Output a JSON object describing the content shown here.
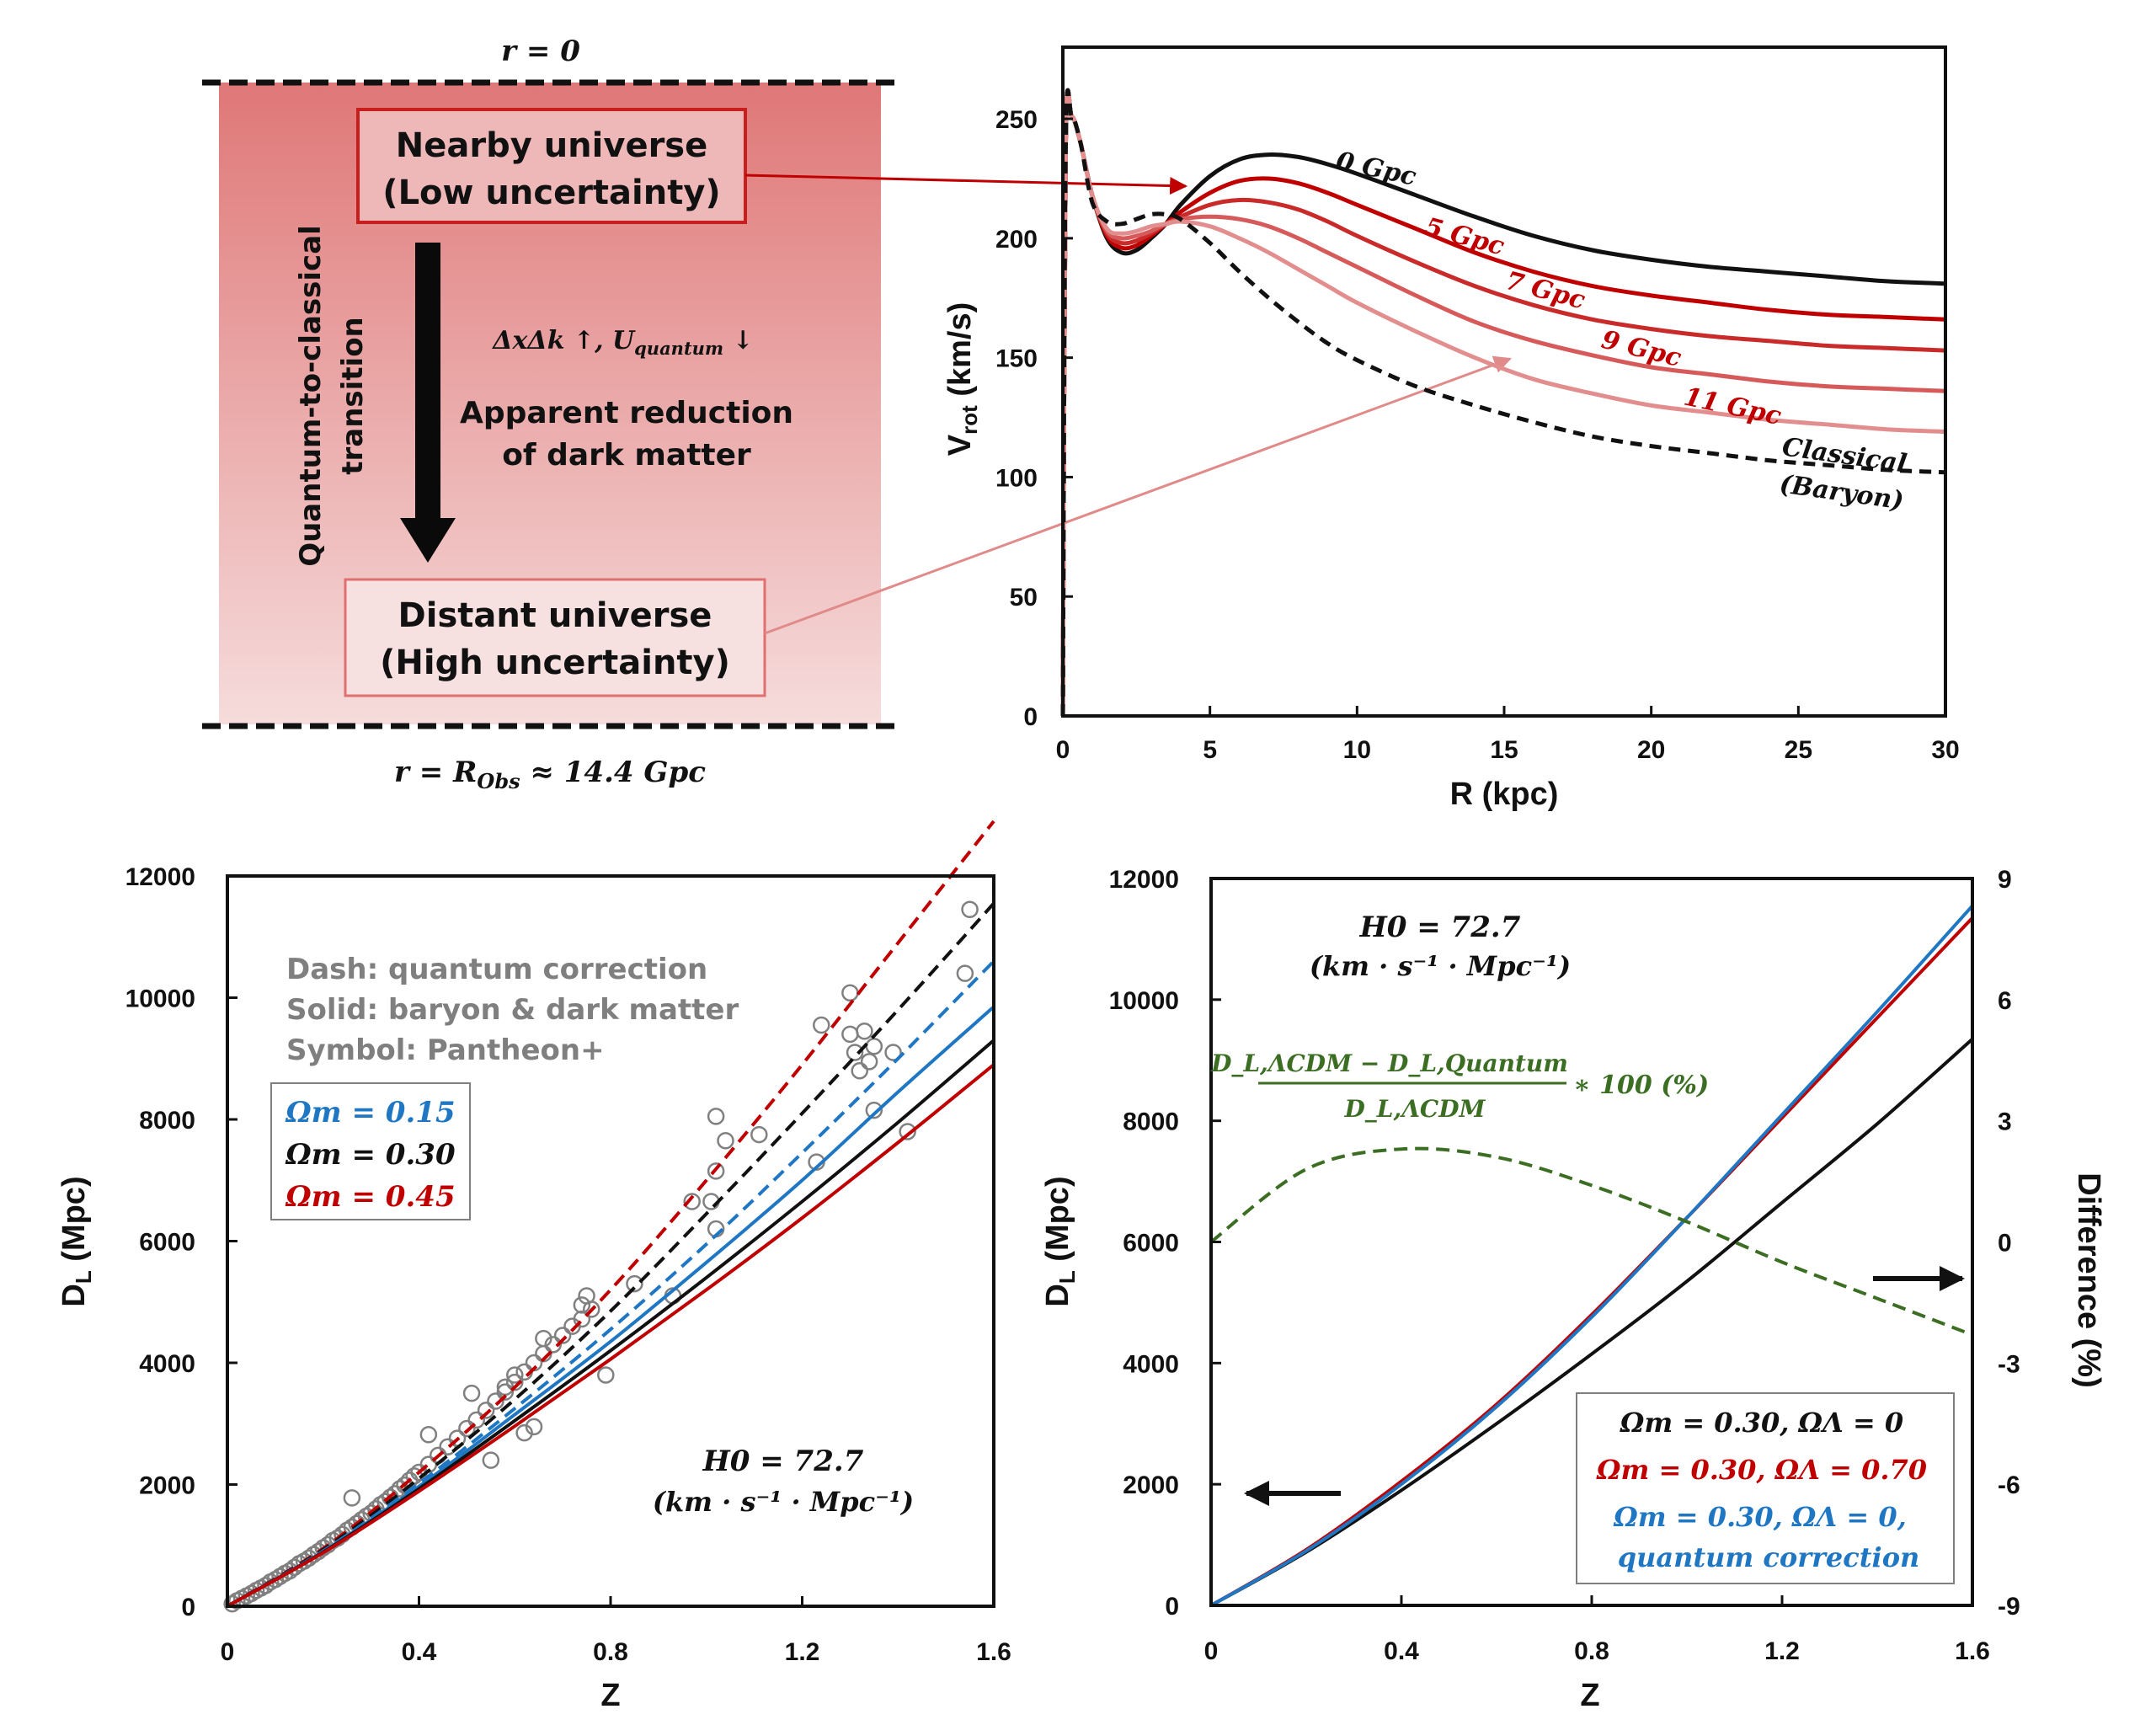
{
  "colors": {
    "black": "#111111",
    "red_dark": "#c00000",
    "red_mid": "#d04545",
    "blue": "#1f77c4",
    "green": "#3b6e22",
    "gray_marker": "#808080",
    "band_top": "#df7777",
    "band_bottom": "#f6dcdc"
  },
  "diagram": {
    "top_boundary_label": "r = 0",
    "bottom_boundary_label": "r = R_Obs ≈ 14.4 Gpc",
    "bottom_boundary_parts": {
      "r": "r",
      "eq": " = ",
      "R": "R",
      "sub": "Obs",
      "rest": " ≈ 14.4 Gpc"
    },
    "nearby_box": {
      "line1": "Nearby universe",
      "line2": "(Low uncertainty)"
    },
    "distant_box": {
      "line1": "Distant universe",
      "line2": "(High uncertainty)"
    },
    "vertical_label": {
      "line1": "Quantum-to-classical",
      "line2": "transition"
    },
    "uncertainty_text": {
      "pre": "ΔxΔk ↑, U",
      "sub": "quantum",
      "post": " ↓"
    },
    "reduction_text": {
      "line1": "Apparent reduction",
      "line2": "of dark matter"
    }
  },
  "chart_data": [
    {
      "id": "rotation_curves",
      "type": "line",
      "title": "",
      "xlabel": "R (kpc)",
      "ylabel": "V_rot (km/s)",
      "ylabel_parts": {
        "main": "V",
        "sub": "rot",
        "rest": " (km/s)"
      },
      "xlim": [
        0,
        30
      ],
      "ylim": [
        0,
        280
      ],
      "xticks": [
        0,
        5,
        10,
        15,
        20,
        25,
        30
      ],
      "yticks": [
        0,
        50,
        100,
        150,
        200,
        250
      ],
      "grid": false,
      "legend": "inline-labels",
      "x": [
        0,
        0.1,
        0.3,
        0.6,
        1,
        1.5,
        2,
        2.5,
        3,
        3.5,
        4,
        5,
        6,
        7,
        8,
        9,
        10,
        12,
        14,
        16,
        18,
        20,
        22,
        24,
        26,
        28,
        30
      ],
      "series": [
        {
          "name": "0 Gpc",
          "label": "0 Gpc",
          "style": "solid",
          "color": "#111111",
          "values": [
            0,
            240,
            251,
            240,
            218,
            200,
            194,
            195,
            200,
            206,
            214,
            226,
            233,
            235,
            234,
            231,
            227,
            218,
            209,
            201,
            195,
            191,
            188,
            186,
            184,
            182,
            181
          ]
        },
        {
          "name": "5 Gpc",
          "label": "5 Gpc",
          "style": "solid",
          "color": "#c00000",
          "values": [
            0,
            240,
            251,
            240,
            218,
            201,
            196,
            197,
            201,
            206,
            211,
            219,
            224,
            225,
            223,
            219,
            214,
            204,
            194,
            186,
            180,
            176,
            173,
            170,
            168,
            167,
            166
          ]
        },
        {
          "name": "7 Gpc",
          "label": "7 Gpc",
          "style": "solid",
          "color": "#c92a2a",
          "values": [
            0,
            240,
            251,
            240,
            218,
            202,
            198,
            199,
            202,
            206,
            209,
            214,
            216,
            215,
            212,
            207,
            201,
            190,
            180,
            172,
            166,
            162,
            159,
            157,
            155,
            154,
            153
          ]
        },
        {
          "name": "9 Gpc",
          "label": "9 Gpc",
          "style": "solid",
          "color": "#d65a5a",
          "values": [
            0,
            240,
            251,
            240,
            218,
            203,
            200,
            201,
            203,
            206,
            208,
            209,
            208,
            205,
            200,
            194,
            188,
            176,
            165,
            157,
            151,
            146,
            143,
            140,
            138,
            137,
            136
          ]
        },
        {
          "name": "11 Gpc",
          "label": "11 Gpc",
          "style": "solid",
          "color": "#e38e8e",
          "values": [
            0,
            240,
            251,
            240,
            218,
            204,
            202,
            203,
            205,
            206,
            207,
            205,
            200,
            194,
            187,
            180,
            173,
            161,
            150,
            141,
            135,
            130,
            127,
            124,
            122,
            120,
            119
          ]
        },
        {
          "name": "Classical (Baryon)",
          "label": "Classical (Baryon)",
          "style": "dashed",
          "color": "#111111",
          "values": [
            0,
            240,
            251,
            240,
            215,
            207,
            206,
            208,
            210,
            210,
            208,
            198,
            186,
            175,
            165,
            156,
            149,
            138,
            130,
            123,
            117,
            113,
            110,
            107,
            105,
            103,
            102
          ]
        }
      ],
      "annotations": [
        "0 Gpc",
        "5 Gpc",
        "7 Gpc",
        "9 Gpc",
        "11 Gpc",
        "Classical",
        "(Baryon)"
      ]
    },
    {
      "id": "luminosity_distance_omega_m",
      "type": "line",
      "title": "",
      "xlabel": "Z",
      "ylabel": "D_L (Mpc)",
      "ylabel_parts": {
        "main": "D",
        "sub": "L",
        "rest": " (Mpc)"
      },
      "xlim": [
        0,
        1.6
      ],
      "ylim": [
        0,
        12000
      ],
      "xticks": [
        0,
        0.4,
        0.8,
        1.2,
        1.6
      ],
      "xtick_labels": [
        "0",
        "0.4",
        "0.8",
        "1.2",
        "1.6"
      ],
      "yticks": [
        0,
        2000,
        4000,
        6000,
        8000,
        10000,
        12000
      ],
      "grid": false,
      "legend": "top-left",
      "notes": [
        "Dash: quantum correction",
        "Solid: baryon & dark matter",
        "Symbol: Pantheon+"
      ],
      "legend_entries": [
        {
          "label": "Ωm = 0.15",
          "color": "#1f77c4"
        },
        {
          "label": "Ωm = 0.30",
          "color": "#111111"
        },
        {
          "label": "Ωm = 0.45",
          "color": "#c00000"
        }
      ],
      "h0_annotation": {
        "line1": "H0 = 72.7",
        "line2": "(km · s⁻¹ · Mpc⁻¹)"
      },
      "x": [
        0,
        0.2,
        0.4,
        0.6,
        0.8,
        1.0,
        1.2,
        1.4,
        1.6
      ],
      "series": [
        {
          "name": "Ωm = 0.45 dashed",
          "style": "dashed",
          "color": "#c00000",
          "values": [
            0,
            950,
            2200,
            3600,
            5200,
            7000,
            8900,
            10900,
            12900
          ]
        },
        {
          "name": "Ωm = 0.30 dashed",
          "style": "dashed",
          "color": "#111111",
          "values": [
            0,
            930,
            2100,
            3400,
            4850,
            6450,
            8100,
            9800,
            11550
          ]
        },
        {
          "name": "Ωm = 0.15 dashed",
          "style": "dashed",
          "color": "#1f77c4",
          "values": [
            0,
            910,
            2020,
            3250,
            4550,
            5950,
            7450,
            9000,
            10600
          ]
        },
        {
          "name": "Ωm = 0.15 solid",
          "style": "solid",
          "color": "#1f77c4",
          "values": [
            0,
            900,
            1970,
            3150,
            4350,
            5650,
            7000,
            8450,
            9850
          ]
        },
        {
          "name": "Ωm = 0.30 solid",
          "style": "solid",
          "color": "#111111",
          "values": [
            0,
            890,
            1930,
            3050,
            4200,
            5400,
            6650,
            7950,
            9300
          ]
        },
        {
          "name": "Ωm = 0.45 solid",
          "style": "solid",
          "color": "#c00000",
          "values": [
            0,
            880,
            1890,
            2960,
            4060,
            5200,
            6380,
            7620,
            8900
          ]
        }
      ],
      "scatter": {
        "name": "Pantheon+",
        "color": "#808080",
        "points": [
          [
            0.01,
            40
          ],
          [
            0.02,
            90
          ],
          [
            0.03,
            130
          ],
          [
            0.04,
            170
          ],
          [
            0.05,
            210
          ],
          [
            0.06,
            260
          ],
          [
            0.07,
            300
          ],
          [
            0.08,
            340
          ],
          [
            0.09,
            400
          ],
          [
            0.1,
            440
          ],
          [
            0.11,
            490
          ],
          [
            0.12,
            540
          ],
          [
            0.13,
            580
          ],
          [
            0.14,
            640
          ],
          [
            0.15,
            700
          ],
          [
            0.16,
            740
          ],
          [
            0.17,
            790
          ],
          [
            0.18,
            850
          ],
          [
            0.19,
            900
          ],
          [
            0.2,
            960
          ],
          [
            0.21,
            1010
          ],
          [
            0.22,
            1080
          ],
          [
            0.23,
            1120
          ],
          [
            0.24,
            1180
          ],
          [
            0.25,
            1250
          ],
          [
            0.26,
            1300
          ],
          [
            0.27,
            1360
          ],
          [
            0.28,
            1420
          ],
          [
            0.29,
            1480
          ],
          [
            0.3,
            1530
          ],
          [
            0.31,
            1600
          ],
          [
            0.32,
            1670
          ],
          [
            0.33,
            1720
          ],
          [
            0.34,
            1790
          ],
          [
            0.35,
            1850
          ],
          [
            0.36,
            1930
          ],
          [
            0.37,
            1990
          ],
          [
            0.38,
            2070
          ],
          [
            0.39,
            2140
          ],
          [
            0.4,
            2200
          ],
          [
            0.42,
            2330
          ],
          [
            0.44,
            2480
          ],
          [
            0.46,
            2620
          ],
          [
            0.48,
            2760
          ],
          [
            0.5,
            2920
          ],
          [
            0.52,
            3060
          ],
          [
            0.54,
            3220
          ],
          [
            0.56,
            3370
          ],
          [
            0.58,
            3520
          ],
          [
            0.6,
            3680
          ],
          [
            0.62,
            3850
          ],
          [
            0.64,
            4000
          ],
          [
            0.66,
            4150
          ],
          [
            0.68,
            4300
          ],
          [
            0.7,
            4450
          ],
          [
            0.72,
            4600
          ],
          [
            0.74,
            4720
          ],
          [
            0.76,
            4880
          ],
          [
            0.26,
            1780
          ],
          [
            0.42,
            2820
          ],
          [
            0.51,
            3500
          ],
          [
            0.55,
            2400
          ],
          [
            0.62,
            2850
          ],
          [
            0.64,
            2950
          ],
          [
            0.58,
            3600
          ],
          [
            0.66,
            4400
          ],
          [
            0.6,
            3800
          ],
          [
            0.75,
            5100
          ],
          [
            0.74,
            4950
          ],
          [
            0.79,
            3800
          ],
          [
            0.85,
            5300
          ],
          [
            0.93,
            5100
          ],
          [
            0.97,
            6650
          ],
          [
            1.01,
            6650
          ],
          [
            1.02,
            6200
          ],
          [
            1.02,
            7150
          ],
          [
            1.02,
            8050
          ],
          [
            1.04,
            7650
          ],
          [
            1.11,
            7750
          ],
          [
            1.23,
            7300
          ],
          [
            1.24,
            9550
          ],
          [
            1.3,
            10080
          ],
          [
            1.3,
            9400
          ],
          [
            1.31,
            9100
          ],
          [
            1.32,
            8800
          ],
          [
            1.33,
            9450
          ],
          [
            1.34,
            8950
          ],
          [
            1.35,
            9200
          ],
          [
            1.35,
            8150
          ],
          [
            1.39,
            9100
          ],
          [
            1.42,
            7800
          ],
          [
            1.54,
            10400
          ],
          [
            1.55,
            11450
          ]
        ]
      }
    },
    {
      "id": "luminosity_distance_lambda",
      "type": "line",
      "title": "",
      "xlabel": "Z",
      "ylabel": "D_L (Mpc)",
      "ylabel_parts": {
        "main": "D",
        "sub": "L",
        "rest": " (Mpc)"
      },
      "y2label": "Difference (%)",
      "xlim": [
        0,
        1.6
      ],
      "ylim": [
        0,
        12000
      ],
      "y2lim": [
        -9,
        9
      ],
      "xticks": [
        0,
        0.4,
        0.8,
        1.2,
        1.6
      ],
      "xtick_labels": [
        "0",
        "0.4",
        "0.8",
        "1.2",
        "1.6"
      ],
      "yticks": [
        0,
        2000,
        4000,
        6000,
        8000,
        10000,
        12000
      ],
      "y2ticks": [
        -9,
        -6,
        -3,
        0,
        3,
        6,
        9
      ],
      "grid": false,
      "legend": "bottom-right",
      "legend_entries": [
        {
          "label": "Ωm = 0.30, ΩΛ = 0",
          "color": "#111111"
        },
        {
          "label": "Ωm = 0.30, ΩΛ = 0.70",
          "color": "#c00000"
        },
        {
          "label": "Ωm = 0.30, ΩΛ = 0,",
          "label2": "quantum correction",
          "color": "#1f77c4"
        }
      ],
      "h0_annotation": {
        "line1": "H0 = 72.7",
        "line2": "(km · s⁻¹ · Mpc⁻¹)"
      },
      "formula_annotation": {
        "numerator": "D_L,ΛCDM − D_L,Quantum",
        "denominator": "D_L,ΛCDM",
        "suffix": "∗ 100 (%)"
      },
      "x": [
        0,
        0.2,
        0.4,
        0.6,
        0.8,
        1.0,
        1.2,
        1.4,
        1.6
      ],
      "series": [
        {
          "name": "Ωm = 0.30, ΩΛ = 0",
          "axis": "left",
          "style": "solid",
          "color": "#111111",
          "values": [
            0,
            880,
            1900,
            3000,
            4150,
            5350,
            6650,
            7950,
            9350
          ]
        },
        {
          "name": "Ωm = 0.30, ΩΛ = 0.70",
          "axis": "left",
          "style": "solid",
          "color": "#c00000",
          "values": [
            0,
            920,
            2050,
            3320,
            4800,
            6400,
            8050,
            9700,
            11350
          ]
        },
        {
          "name": "Ωm = 0.30, ΩΛ = 0, quantum correction",
          "axis": "left",
          "style": "solid",
          "color": "#1f77c4",
          "values": [
            0,
            900,
            2000,
            3280,
            4760,
            6400,
            8100,
            9800,
            11550
          ]
        },
        {
          "name": "Difference (%)",
          "axis": "right",
          "style": "dashed",
          "color": "#3b6e22",
          "values": [
            0,
            1.8,
            2.3,
            2.1,
            1.4,
            0.5,
            -0.5,
            -1.4,
            -2.3
          ]
        }
      ],
      "arrows": [
        {
          "points_to": "left-axis",
          "near_y": 2000
        },
        {
          "points_to": "right-axis",
          "near_y2": -0.8
        }
      ]
    }
  ]
}
